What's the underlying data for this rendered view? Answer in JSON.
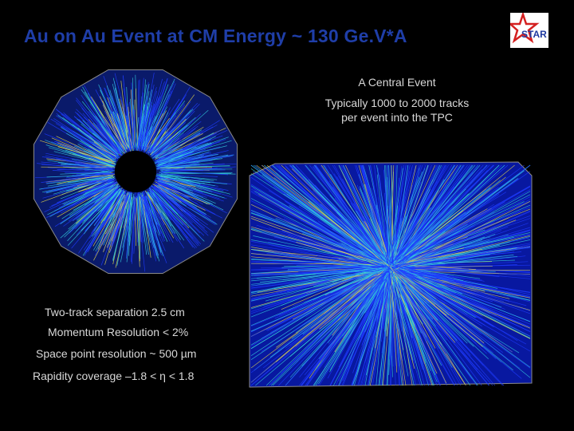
{
  "slide": {
    "title": "Au on Au Event at CM Energy ~ 130 Ge.V*A",
    "logo_text": "STAR",
    "central_event": {
      "label": "A Central Event",
      "tracks_line1": "Typically 1000 to 2000 tracks",
      "tracks_line2": "per event into the TPC"
    },
    "detector_stats": [
      "Two-track separation 2.5 cm",
      "Momentum Resolution < 2%",
      "Space point resolution ~ 500 µm",
      "Rapidity coverage –1.8 < η < 1.8"
    ]
  },
  "colors": {
    "title": "#1f3ea8",
    "text": "#d8d8d8",
    "track_blue": "#1f3cff",
    "track_cyan": "#33ccdd",
    "track_yellow": "#e6d94a",
    "logo_red": "#d42020",
    "logo_blue": "#1f3aa0"
  }
}
